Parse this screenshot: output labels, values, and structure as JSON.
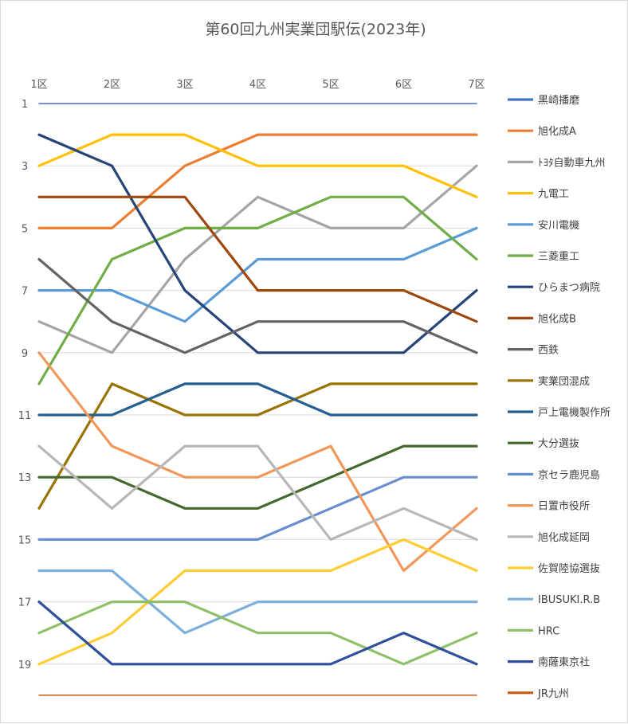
{
  "chart_data": {
    "type": "line",
    "title": "第60回九州実業団駅伝(2023年)",
    "categories": [
      "1区",
      "2区",
      "3区",
      "4区",
      "5区",
      "6区",
      "7区"
    ],
    "y_ticks": [
      "1",
      "3",
      "5",
      "7",
      "9",
      "11",
      "13",
      "15",
      "17",
      "19"
    ],
    "ylim": [
      1,
      20
    ],
    "y_reversed": true,
    "grid": true,
    "legend_position": "right",
    "series": [
      {
        "name": "黒崎播磨",
        "color": "#4472c4",
        "values": [
          1,
          1,
          1,
          1,
          1,
          1,
          1
        ]
      },
      {
        "name": "旭化成A",
        "color": "#ed7d31",
        "values": [
          5,
          5,
          3,
          2,
          2,
          2,
          2
        ]
      },
      {
        "name": "ﾄﾖﾀ自動車九州",
        "color": "#a5a5a5",
        "values": [
          8,
          9,
          6,
          4,
          5,
          5,
          3
        ]
      },
      {
        "name": "九電工",
        "color": "#ffc000",
        "values": [
          3,
          2,
          2,
          3,
          3,
          3,
          4
        ]
      },
      {
        "name": "安川電機",
        "color": "#5b9bd5",
        "values": [
          7,
          7,
          8,
          6,
          6,
          6,
          5
        ]
      },
      {
        "name": "三菱重工",
        "color": "#70ad47",
        "values": [
          10,
          6,
          5,
          5,
          4,
          4,
          6
        ]
      },
      {
        "name": "ひらまつ病院",
        "color": "#264478",
        "values": [
          2,
          3,
          7,
          9,
          9,
          9,
          7
        ]
      },
      {
        "name": "旭化成B",
        "color": "#9e480e",
        "values": [
          4,
          4,
          4,
          7,
          7,
          7,
          8
        ]
      },
      {
        "name": "西鉄",
        "color": "#636363",
        "values": [
          6,
          8,
          9,
          8,
          8,
          8,
          9
        ]
      },
      {
        "name": "実業団混成",
        "color": "#997300",
        "values": [
          14,
          10,
          11,
          11,
          10,
          10,
          10
        ]
      },
      {
        "name": "戸上電機製作所",
        "color": "#255e91",
        "values": [
          11,
          11,
          10,
          10,
          11,
          11,
          11
        ]
      },
      {
        "name": "大分選抜",
        "color": "#43682b",
        "values": [
          13,
          13,
          14,
          14,
          13,
          12,
          12
        ]
      },
      {
        "name": "京セラ鹿児島",
        "color": "#698ed0",
        "values": [
          15,
          15,
          15,
          15,
          14,
          13,
          13
        ]
      },
      {
        "name": "日置市役所",
        "color": "#f1975a",
        "values": [
          9,
          12,
          13,
          13,
          12,
          16,
          14
        ]
      },
      {
        "name": "旭化成延岡",
        "color": "#b7b7b7",
        "values": [
          12,
          14,
          12,
          12,
          15,
          14,
          15
        ]
      },
      {
        "name": "佐賀陸協選抜",
        "color": "#ffcd33",
        "values": [
          19,
          18,
          16,
          16,
          16,
          15,
          16
        ]
      },
      {
        "name": "IBUSUKI.R.B",
        "color": "#7cafdd",
        "values": [
          16,
          16,
          18,
          17,
          17,
          17,
          17
        ]
      },
      {
        "name": "HRC",
        "color": "#8cc168",
        "values": [
          18,
          17,
          17,
          18,
          18,
          19,
          18
        ]
      },
      {
        "name": "南薩東京社",
        "color": "#2f4f9b",
        "values": [
          17,
          19,
          19,
          19,
          19,
          18,
          19
        ]
      },
      {
        "name": "JR九州",
        "color": "#c55a11",
        "values": [
          20,
          20,
          20,
          20,
          20,
          20,
          20
        ]
      }
    ]
  }
}
